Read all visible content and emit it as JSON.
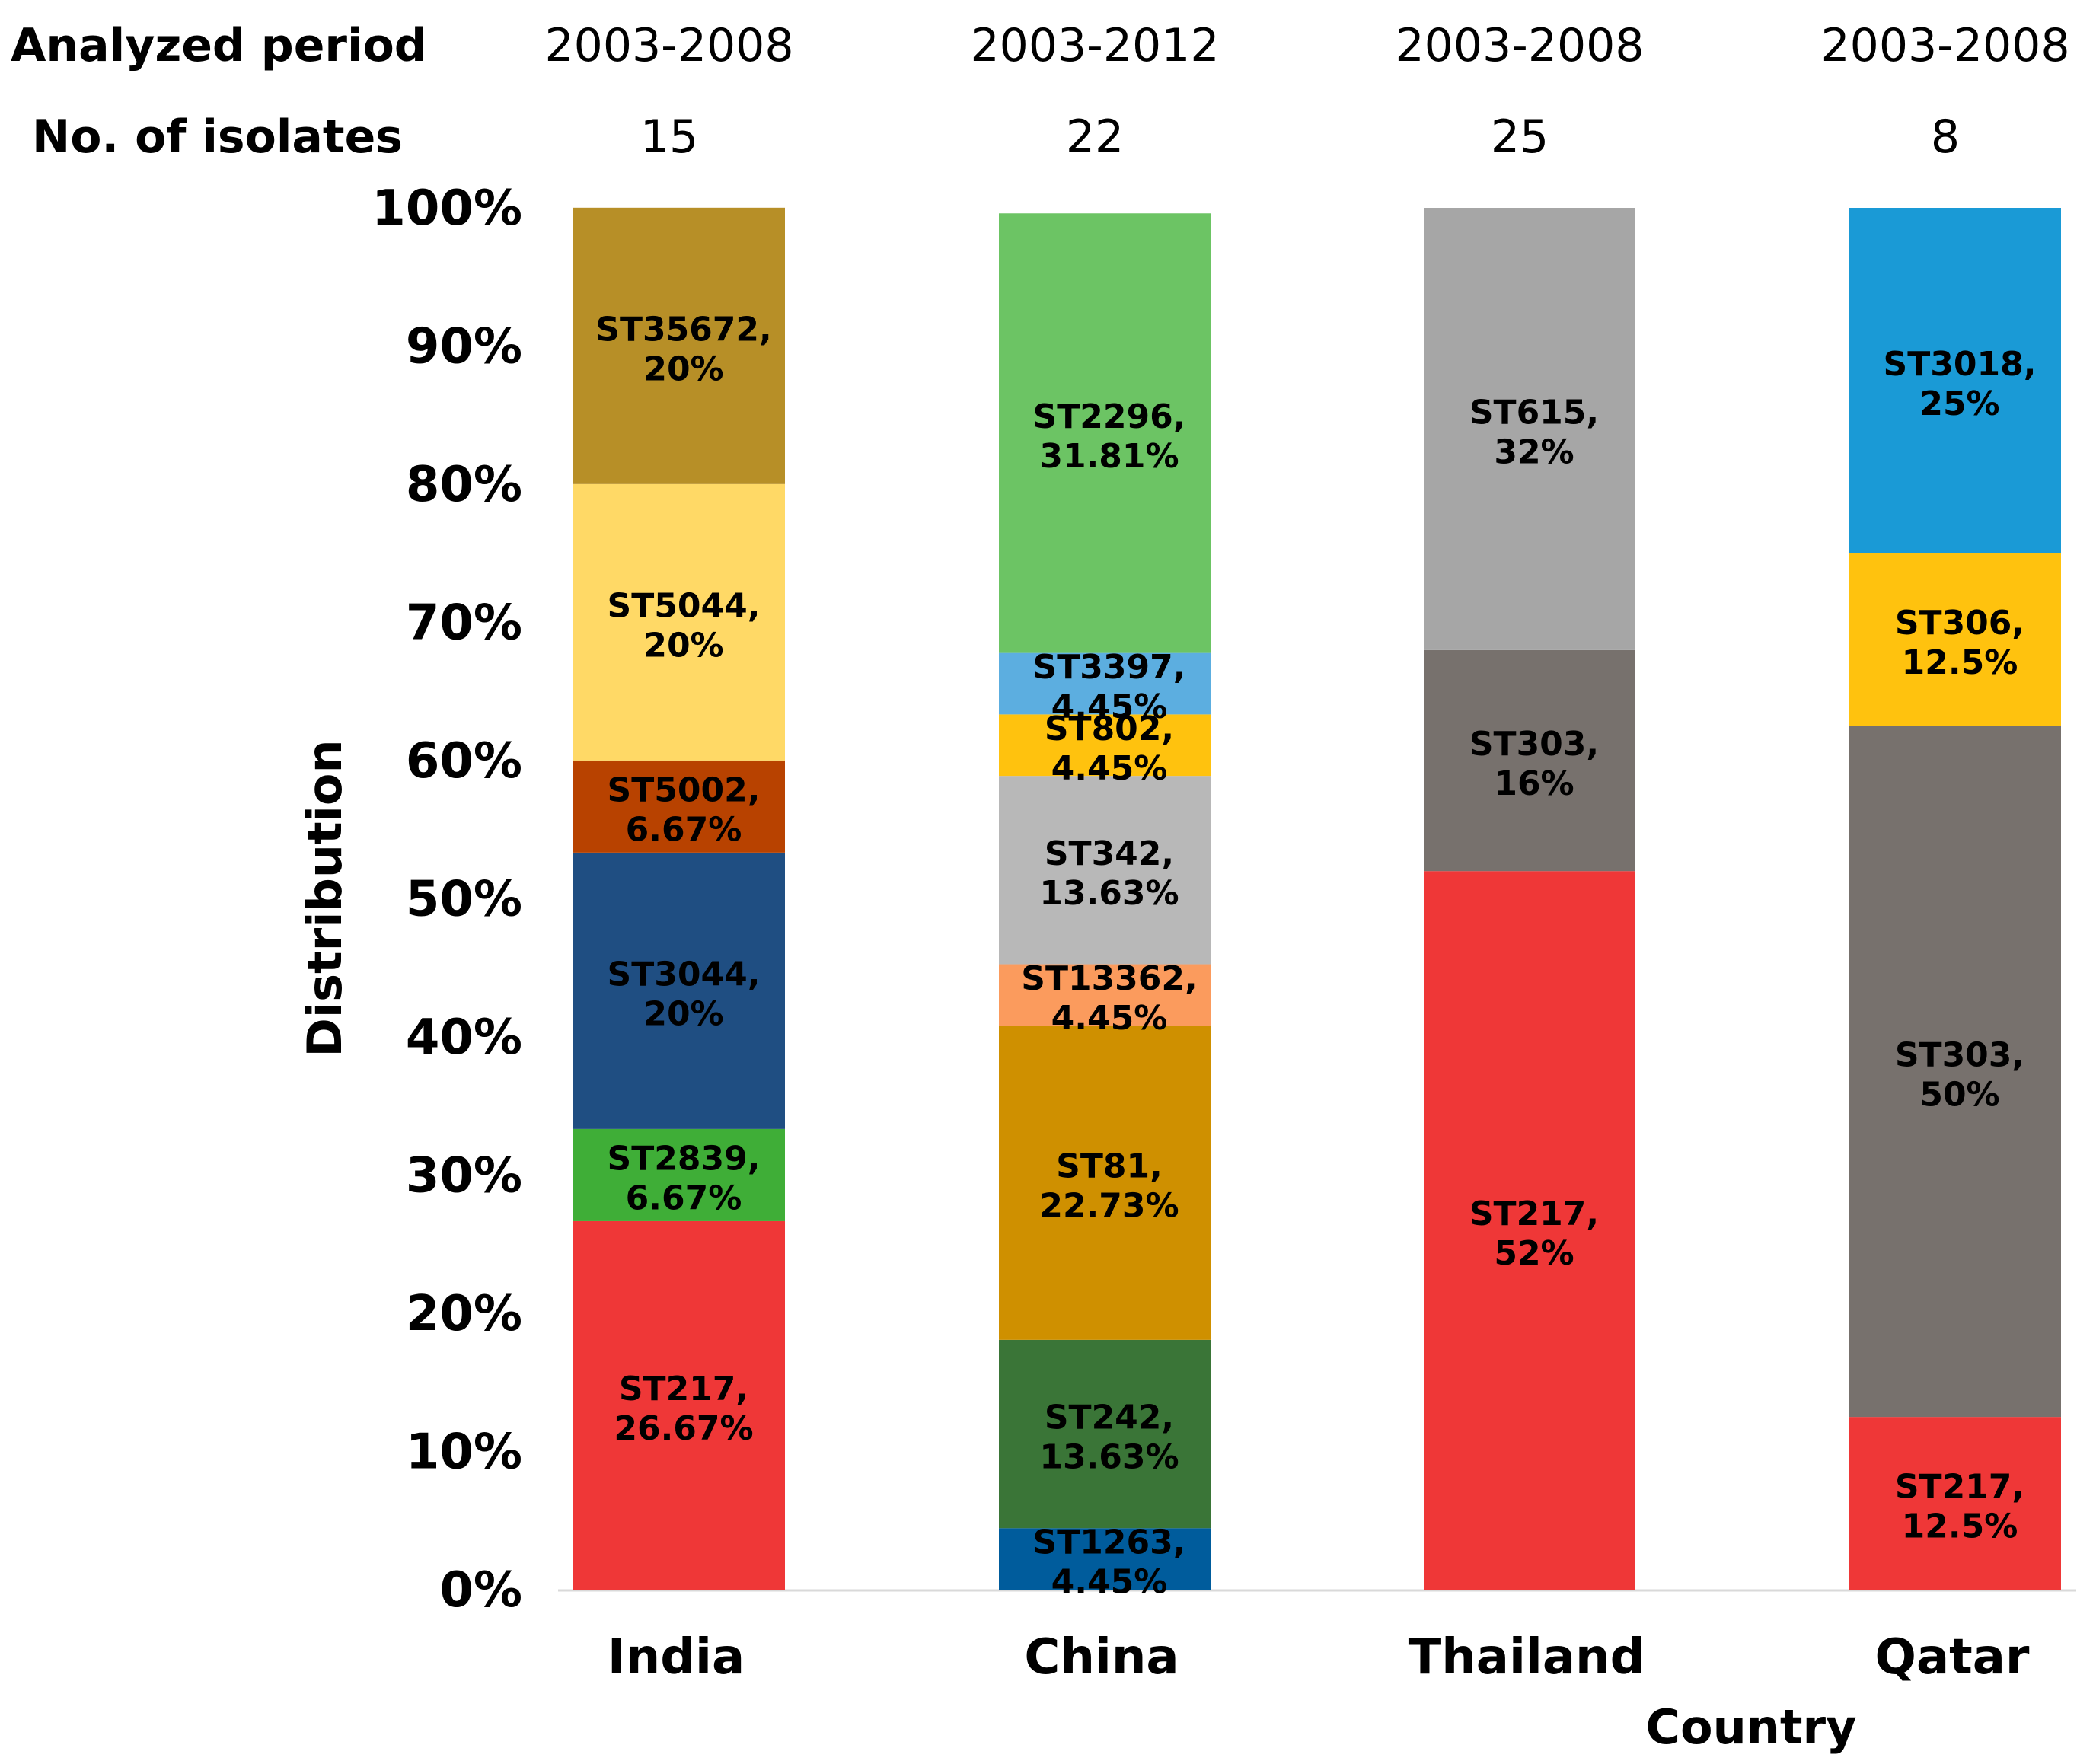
{
  "header": {
    "period_label": "Analyzed period",
    "isolates_label": "No. of isolates"
  },
  "chart_data": {
    "type": "bar",
    "stacked": true,
    "xlabel": "Country",
    "ylabel": "Distribution",
    "ylim": [
      0,
      100
    ],
    "yticks": [
      "0%",
      "10%",
      "20%",
      "30%",
      "40%",
      "50%",
      "60%",
      "70%",
      "80%",
      "90%",
      "100%"
    ],
    "categories": [
      "India",
      "China",
      "Thailand",
      "Qatar"
    ],
    "periods": [
      "2003-2008",
      "2003-2012",
      "2003-2008",
      "2003-2008"
    ],
    "isolates": [
      "15",
      "22",
      "25",
      "8"
    ],
    "bars": [
      {
        "category": "India",
        "segments": [
          {
            "name": "ST217,",
            "pct": "26.67%",
            "value": 26.67,
            "color": "#ef3737"
          },
          {
            "name": "ST2839,",
            "pct": "6.67%",
            "value": 6.67,
            "color": "#3fae37"
          },
          {
            "name": "ST3044,",
            "pct": "20%",
            "value": 20,
            "color": "#1f4e82"
          },
          {
            "name": "ST5002,",
            "pct": "6.67%",
            "value": 6.67,
            "color": "#b84200"
          },
          {
            "name": "ST5044,",
            "pct": "20%",
            "value": 20,
            "color": "#ffd966"
          },
          {
            "name": "ST35672,",
            "pct": "20%",
            "value": 20,
            "color": "#b78f27"
          }
        ]
      },
      {
        "category": "China",
        "segments": [
          {
            "name": "ST1263,",
            "pct": "4.45%",
            "value": 4.45,
            "color": "#005c9c"
          },
          {
            "name": "ST242,",
            "pct": "13.63%",
            "value": 13.63,
            "color": "#3a7537"
          },
          {
            "name": "ST81,",
            "pct": "22.73%",
            "value": 22.73,
            "color": "#cf9000"
          },
          {
            "name": "ST13362,",
            "pct": "4.45%",
            "value": 4.45,
            "color": "#fb9b5d"
          },
          {
            "name": "ST342,",
            "pct": "13.63%",
            "value": 13.63,
            "color": "#b8b8b8"
          },
          {
            "name": "ST802,",
            "pct": "4.45%",
            "value": 4.45,
            "color": "#ffc20e"
          },
          {
            "name": "ST3397,",
            "pct": "4.45%",
            "value": 4.45,
            "color": "#5caee0"
          },
          {
            "name": "ST2296,",
            "pct": "31.81%",
            "value": 31.81,
            "color": "#6cc464"
          }
        ]
      },
      {
        "category": "Thailand",
        "segments": [
          {
            "name": "ST217,",
            "pct": "52%",
            "value": 52,
            "color": "#ef3737"
          },
          {
            "name": "ST303,",
            "pct": "16%",
            "value": 16,
            "color": "#77716d"
          },
          {
            "name": "ST615,",
            "pct": "32%",
            "value": 32,
            "color": "#a6a6a6"
          }
        ]
      },
      {
        "category": "Qatar",
        "segments": [
          {
            "name": "ST217,",
            "pct": "12.5%",
            "value": 12.5,
            "color": "#ef3737"
          },
          {
            "name": "ST303,",
            "pct": "50%",
            "value": 50,
            "color": "#77716d"
          },
          {
            "name": "ST306,",
            "pct": "12.5%",
            "value": 12.5,
            "color": "#ffc20e"
          },
          {
            "name": "ST3018,",
            "pct": "25%",
            "value": 25,
            "color": "#1a9ad6"
          }
        ]
      }
    ]
  }
}
